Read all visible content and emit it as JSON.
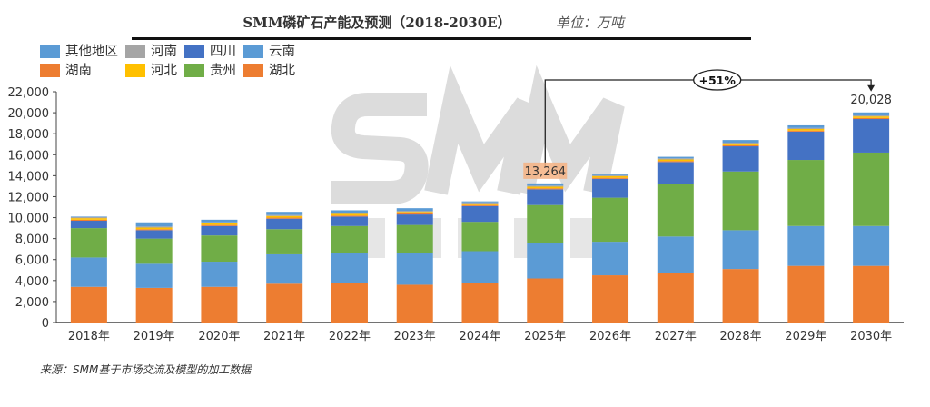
{
  "chart_data": {
    "type": "bar",
    "stacked": true,
    "title": "SMM磷矿石产能及预测（2018-2030E）",
    "unit": "单位：万吨",
    "categories": [
      "2018年",
      "2019年",
      "2020年",
      "2021年",
      "2022年",
      "2023年",
      "2024年",
      "2025年",
      "2026年",
      "2027年",
      "2028年",
      "2029年",
      "2030年"
    ],
    "ylim": [
      0,
      22000
    ],
    "yticks": [
      "0",
      "2,000",
      "4,000",
      "6,000",
      "8,000",
      "10,000",
      "12,000",
      "14,000",
      "16,000",
      "18,000",
      "20,000",
      "22,000"
    ],
    "legend_position": "top-left",
    "series": [
      {
        "name": "湖北",
        "color": "#ED7D31",
        "values": [
          3400,
          3300,
          3400,
          3700,
          3800,
          3600,
          3800,
          4200,
          4500,
          4700,
          5100,
          5400,
          5400
        ]
      },
      {
        "name": "云南",
        "color": "#5B9BD5",
        "values": [
          2800,
          2300,
          2400,
          2800,
          2800,
          3000,
          3000,
          3400,
          3200,
          3500,
          3700,
          3800,
          3800
        ]
      },
      {
        "name": "贵州",
        "color": "#70AD47",
        "values": [
          2800,
          2400,
          2500,
          2400,
          2600,
          2700,
          2800,
          3600,
          4200,
          5000,
          5600,
          6300,
          7000
        ]
      },
      {
        "name": "四川",
        "color": "#4472C4",
        "values": [
          700,
          800,
          900,
          1000,
          900,
          1000,
          1500,
          1500,
          1800,
          2100,
          2400,
          2700,
          3200
        ]
      },
      {
        "name": "湖南",
        "color": "#ED7D31",
        "values": [
          100,
          100,
          100,
          100,
          100,
          100,
          100,
          100,
          100,
          100,
          100,
          100,
          100
        ]
      },
      {
        "name": "河北",
        "color": "#FFC000",
        "values": [
          150,
          150,
          150,
          150,
          150,
          150,
          150,
          150,
          150,
          150,
          150,
          150,
          150
        ]
      },
      {
        "name": "河南",
        "color": "#A5A5A5",
        "values": [
          100,
          100,
          100,
          100,
          100,
          100,
          100,
          100,
          100,
          100,
          100,
          100,
          100
        ]
      },
      {
        "name": "其他地区",
        "color": "#5B9BD5",
        "values": [
          50,
          400,
          250,
          300,
          250,
          250,
          100,
          214,
          150,
          150,
          250,
          250,
          278
        ]
      }
    ],
    "legend_order": [
      "其他地区",
      "河南",
      "四川",
      "云南",
      "湖南",
      "河北",
      "贵州",
      "湖北"
    ],
    "data_labels": [
      {
        "category": "2025年",
        "text": "13,264"
      },
      {
        "category": "2030年",
        "text": "20,028"
      }
    ],
    "annotation": {
      "text": "+51%",
      "from": "2025年",
      "to": "2030年"
    },
    "watermark": "SMM 上海有色网"
  },
  "source": "来源：SMM基于市场交流及模型的加工数据"
}
